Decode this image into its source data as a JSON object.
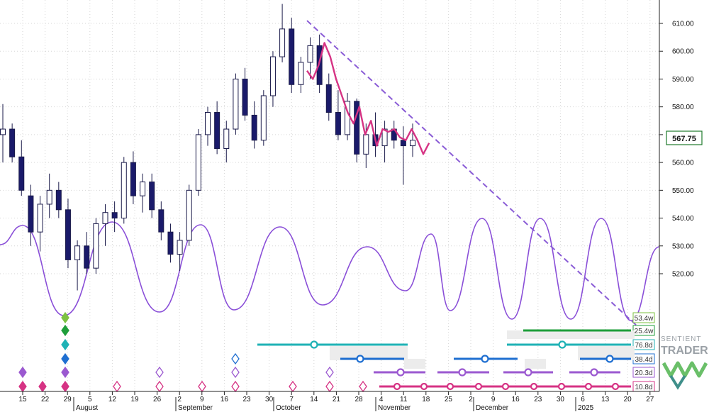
{
  "chart_data": {
    "type": "candlestick",
    "y_axis": {
      "ticks": [
        520,
        530,
        540,
        550,
        560,
        570,
        580,
        590,
        600,
        610
      ],
      "ylim": [
        508,
        619
      ]
    },
    "current_price": "567.75",
    "x_axis": {
      "day_ticks": [
        "15",
        "22",
        "29",
        "5",
        "12",
        "19",
        "26",
        "2",
        "9",
        "16",
        "23",
        "30",
        "7",
        "14",
        "21",
        "28",
        "4",
        "11",
        "18",
        "25",
        "2",
        "9",
        "16",
        "23",
        "30",
        "6",
        "13",
        "20",
        "27"
      ],
      "months": [
        "August",
        "September",
        "October",
        "November",
        "December",
        "2025"
      ]
    },
    "candles": [
      {
        "o": 570,
        "h": 581,
        "l": 560,
        "c": 572
      },
      {
        "o": 572,
        "h": 574,
        "l": 560,
        "c": 562
      },
      {
        "o": 562,
        "h": 568,
        "l": 548,
        "c": 550
      },
      {
        "o": 548,
        "h": 552,
        "l": 530,
        "c": 535
      },
      {
        "o": 535,
        "h": 548,
        "l": 528,
        "c": 545
      },
      {
        "o": 545,
        "h": 556,
        "l": 540,
        "c": 550
      },
      {
        "o": 550,
        "h": 553,
        "l": 540,
        "c": 543
      },
      {
        "o": 543,
        "h": 547,
        "l": 522,
        "c": 525
      },
      {
        "o": 525,
        "h": 532,
        "l": 514,
        "c": 530
      },
      {
        "o": 530,
        "h": 535,
        "l": 520,
        "c": 522
      },
      {
        "o": 522,
        "h": 540,
        "l": 520,
        "c": 538
      },
      {
        "o": 538,
        "h": 545,
        "l": 530,
        "c": 542
      },
      {
        "o": 542,
        "h": 546,
        "l": 535,
        "c": 540
      },
      {
        "o": 540,
        "h": 562,
        "l": 538,
        "c": 560
      },
      {
        "o": 560,
        "h": 564,
        "l": 545,
        "c": 548
      },
      {
        "o": 548,
        "h": 556,
        "l": 542,
        "c": 553
      },
      {
        "o": 553,
        "h": 556,
        "l": 540,
        "c": 543
      },
      {
        "o": 543,
        "h": 546,
        "l": 532,
        "c": 535
      },
      {
        "o": 535,
        "h": 538,
        "l": 524,
        "c": 527
      },
      {
        "o": 527,
        "h": 535,
        "l": 521,
        "c": 532
      },
      {
        "o": 532,
        "h": 552,
        "l": 530,
        "c": 550
      },
      {
        "o": 550,
        "h": 572,
        "l": 548,
        "c": 570
      },
      {
        "o": 570,
        "h": 580,
        "l": 566,
        "c": 578
      },
      {
        "o": 578,
        "h": 582,
        "l": 563,
        "c": 565
      },
      {
        "o": 565,
        "h": 575,
        "l": 560,
        "c": 572
      },
      {
        "o": 572,
        "h": 592,
        "l": 570,
        "c": 590
      },
      {
        "o": 590,
        "h": 594,
        "l": 575,
        "c": 577
      },
      {
        "o": 577,
        "h": 582,
        "l": 565,
        "c": 568
      },
      {
        "o": 568,
        "h": 586,
        "l": 566,
        "c": 584
      },
      {
        "o": 584,
        "h": 600,
        "l": 580,
        "c": 598
      },
      {
        "o": 598,
        "h": 617,
        "l": 596,
        "c": 608
      },
      {
        "o": 608,
        "h": 612,
        "l": 585,
        "c": 588
      },
      {
        "o": 588,
        "h": 598,
        "l": 585,
        "c": 596
      },
      {
        "o": 596,
        "h": 605,
        "l": 590,
        "c": 602
      },
      {
        "o": 602,
        "h": 606,
        "l": 585,
        "c": 588
      },
      {
        "o": 588,
        "h": 592,
        "l": 575,
        "c": 578
      },
      {
        "o": 578,
        "h": 586,
        "l": 568,
        "c": 570
      },
      {
        "o": 570,
        "h": 585,
        "l": 568,
        "c": 582
      },
      {
        "o": 582,
        "h": 583,
        "l": 560,
        "c": 563
      },
      {
        "o": 563,
        "h": 574,
        "l": 558,
        "c": 570
      },
      {
        "o": 570,
        "h": 578,
        "l": 562,
        "c": 566
      },
      {
        "o": 566,
        "h": 575,
        "l": 560,
        "c": 572
      },
      {
        "o": 572,
        "h": 575,
        "l": 565,
        "c": 568
      },
      {
        "o": 568,
        "h": 573,
        "l": 552,
        "c": 566
      },
      {
        "o": 566,
        "h": 574,
        "l": 562,
        "c": 568
      }
    ],
    "projection": [
      {
        "d": 0,
        "v": 593
      },
      {
        "d": 1,
        "v": 590
      },
      {
        "d": 2,
        "v": 595
      },
      {
        "d": 3,
        "v": 603
      },
      {
        "d": 4,
        "v": 598
      },
      {
        "d": 5,
        "v": 590
      },
      {
        "d": 6,
        "v": 584
      },
      {
        "d": 7,
        "v": 578
      },
      {
        "d": 8,
        "v": 574
      },
      {
        "d": 9,
        "v": 580
      },
      {
        "d": 10,
        "v": 570
      },
      {
        "d": 11,
        "v": 575
      },
      {
        "d": 12,
        "v": 566
      },
      {
        "d": 13,
        "v": 572
      },
      {
        "d": 14,
        "v": 571
      },
      {
        "d": 15,
        "v": 572
      },
      {
        "d": 16,
        "v": 569
      },
      {
        "d": 17,
        "v": 568
      },
      {
        "d": 18,
        "v": 572
      },
      {
        "d": 19,
        "v": 568
      },
      {
        "d": 20,
        "v": 563
      },
      {
        "d": 21,
        "v": 567
      }
    ],
    "trendline": {
      "from": {
        "d": 0,
        "v": 611
      },
      "to": {
        "d": 72,
        "v": 510
      }
    },
    "cycles": [
      {
        "label": "53.4w",
        "color": "#7cc242"
      },
      {
        "label": "25.4w",
        "color": "#1e9e3a"
      },
      {
        "label": "76.8d",
        "color": "#1fb2b5"
      },
      {
        "label": "38.4d",
        "color": "#1f6fd1"
      },
      {
        "label": "20.3d",
        "color": "#9b59d0"
      },
      {
        "label": "10.8d",
        "color": "#d63384"
      }
    ]
  },
  "logo": {
    "line1": "SENTIENT",
    "line2": "TRADER"
  }
}
